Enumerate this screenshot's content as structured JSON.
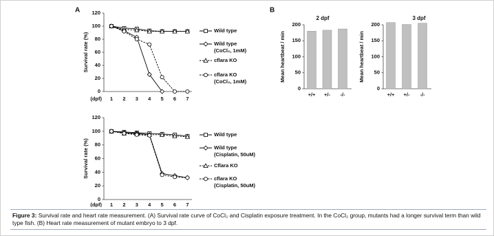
{
  "panel_labels": [
    "A",
    "B"
  ],
  "chart_data": [
    {
      "type": "line",
      "ylabel": "Survival rate (%)",
      "xlabel": "(dpf)",
      "categories": [
        "1",
        "2",
        "3",
        "4",
        "5",
        "6",
        "7"
      ],
      "ylim": [
        0,
        120
      ],
      "yticks": [
        0,
        20,
        40,
        60,
        80,
        100,
        120
      ],
      "series": [
        {
          "name": "Wild type",
          "color": "#000000",
          "marker": "square",
          "dashed": false,
          "values": [
            100,
            97,
            96,
            93,
            92,
            92,
            92
          ]
        },
        {
          "name": "Wild type (CoCl₂, 1mM)",
          "color": "#000000",
          "marker": "diamond",
          "dashed": false,
          "values": [
            100,
            93,
            83,
            26,
            0,
            null,
            null
          ]
        },
        {
          "name": "cflara KO",
          "color": "#000000",
          "marker": "triangle",
          "dashed": true,
          "values": [
            100,
            95,
            94,
            92,
            92,
            92,
            92
          ]
        },
        {
          "name": "cflara KO (CoCl₂, 1mM)",
          "color": "#000000",
          "marker": "circle",
          "dashed": true,
          "values": [
            100,
            92,
            80,
            72,
            22,
            0,
            0
          ]
        }
      ]
    },
    {
      "type": "line",
      "ylabel": "Survival rate (%)",
      "xlabel": "(dpf)",
      "categories": [
        "1",
        "2",
        "3",
        "4",
        "5",
        "6",
        "7"
      ],
      "ylim": [
        0,
        120
      ],
      "yticks": [
        0,
        20,
        40,
        60,
        80,
        100,
        120
      ],
      "series": [
        {
          "name": "Wild type",
          "color": "#000000",
          "marker": "square",
          "dashed": false,
          "values": [
            100,
            99,
            98,
            97,
            96,
            95,
            93
          ]
        },
        {
          "name": "Wild type (Cisplatin, 50uM)",
          "color": "#000000",
          "marker": "diamond",
          "dashed": false,
          "values": [
            100,
            98,
            97,
            95,
            38,
            35,
            32
          ]
        },
        {
          "name": "Cflara KO",
          "color": "#000000",
          "marker": "triangle",
          "dashed": true,
          "values": [
            100,
            97,
            96,
            95,
            95,
            93,
            92
          ]
        },
        {
          "name": "cflara KO (Cisplatin, 50uM)",
          "color": "#000000",
          "marker": "circle",
          "dashed": true,
          "values": [
            100,
            97,
            95,
            94,
            36,
            33,
            32
          ]
        }
      ]
    },
    {
      "type": "bar",
      "title": "2 dpf",
      "ylabel": "Mean heartbeat / min",
      "categories": [
        "+/+",
        "+/-",
        "-/-"
      ],
      "values": [
        180,
        183,
        187
      ],
      "color": "#c0c0c0",
      "ylim": [
        0,
        200
      ],
      "yticks": [
        0,
        50,
        100,
        150,
        200
      ]
    },
    {
      "type": "bar",
      "title": "3 dpf",
      "ylabel": "Mean heartbeat / min",
      "categories": [
        "+/+",
        "+/-",
        "-/-"
      ],
      "values": [
        207,
        201,
        205
      ],
      "color": "#c0c0c0",
      "ylim": [
        0,
        200
      ],
      "yticks": [
        0,
        50,
        100,
        150,
        200
      ]
    }
  ],
  "caption": {
    "label": "Figure 3:",
    "text": "Survival rate and heart rate measurement. (A) Survival rate curve of CoCl₂ and Cisplatin exposure treatment. In the CoCl₂ group, mutants had a longer survival term than wild type fish. (B) Heart rate measurement of mutant embryo to 3 dpf."
  }
}
